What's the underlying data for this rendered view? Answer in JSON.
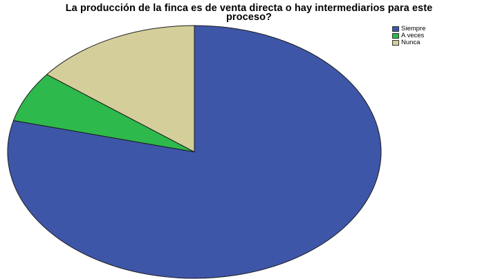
{
  "chart_data": {
    "type": "pie",
    "title_lines": [
      "La producción de la finca es de venta directa o hay intermediarios para este",
      "proceso?"
    ],
    "slices": [
      {
        "label": "Siempre",
        "value": 79,
        "color": "#3e56a8"
      },
      {
        "label": "A veces",
        "value": 6.5,
        "color": "#2eb94c"
      },
      {
        "label": "Nunca",
        "value": 14.5,
        "color": "#d4cf9a"
      }
    ],
    "legend": {
      "position": "top-right",
      "items": [
        "Siempre",
        "A veces",
        "Nunca"
      ]
    }
  }
}
